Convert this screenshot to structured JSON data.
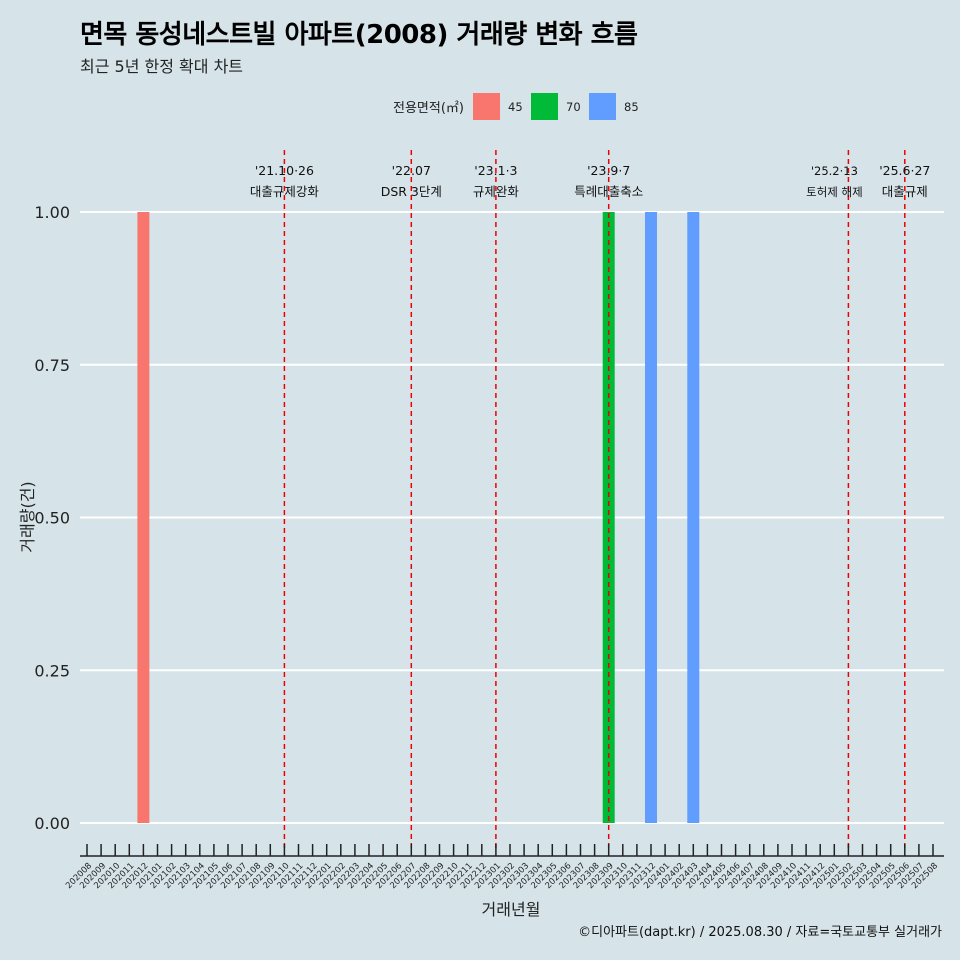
{
  "chart_data": {
    "type": "bar",
    "title": "면목 동성네스트빌 아파트(2008) 거래량 변화 흐름",
    "subtitle": "최근 5년 한정 확대 차트",
    "xlabel": "거래년월",
    "ylabel": "거래량(건)",
    "ylim": [
      0,
      1
    ],
    "yticks": [
      "0.00",
      "0.25",
      "0.50",
      "0.75",
      "1.00"
    ],
    "legend": {
      "title": "전용면적(㎡)",
      "position": "top",
      "entries": [
        {
          "label": "45",
          "color": "#f8766d"
        },
        {
          "label": "70",
          "color": "#00ba38"
        },
        {
          "label": "85",
          "color": "#619cff"
        }
      ]
    },
    "categories": [
      "202008",
      "202009",
      "202010",
      "202011",
      "202012",
      "202101",
      "202102",
      "202103",
      "202104",
      "202105",
      "202106",
      "202107",
      "202108",
      "202109",
      "202110",
      "202111",
      "202112",
      "202201",
      "202202",
      "202203",
      "202204",
      "202205",
      "202206",
      "202207",
      "202208",
      "202209",
      "202210",
      "202211",
      "202212",
      "202301",
      "202302",
      "202303",
      "202304",
      "202305",
      "202306",
      "202307",
      "202308",
      "202309",
      "202310",
      "202311",
      "202312",
      "202401",
      "202402",
      "202403",
      "202404",
      "202405",
      "202406",
      "202407",
      "202408",
      "202409",
      "202410",
      "202411",
      "202412",
      "202501",
      "202502",
      "202503",
      "202504",
      "202505",
      "202506",
      "202507",
      "202508"
    ],
    "bars": [
      {
        "month": "202012",
        "area": "45",
        "value": 1
      },
      {
        "month": "202309",
        "area": "70",
        "value": 1
      },
      {
        "month": "202312",
        "area": "85",
        "value": 1
      },
      {
        "month": "202403",
        "area": "85",
        "value": 1
      }
    ],
    "events": [
      {
        "month": "202110",
        "date": "'21.10·26",
        "label": "대출규제강화"
      },
      {
        "month": "202207",
        "date": "'22.07",
        "label": "DSR 3단계"
      },
      {
        "month": "202301",
        "date": "'23.1·3",
        "label": "규제완화"
      },
      {
        "month": "202309",
        "date": "'23.9·7",
        "label": "특례대출축소"
      },
      {
        "month": "202502",
        "date": "'25.2·13",
        "label": "토허제 해제"
      },
      {
        "month": "202506",
        "date": "'25.6·27",
        "label": "대출규제"
      }
    ],
    "caption": "©디아파트(dapt.kr) / 2025.08.30 / 자료=국토교통부 실거래가"
  }
}
